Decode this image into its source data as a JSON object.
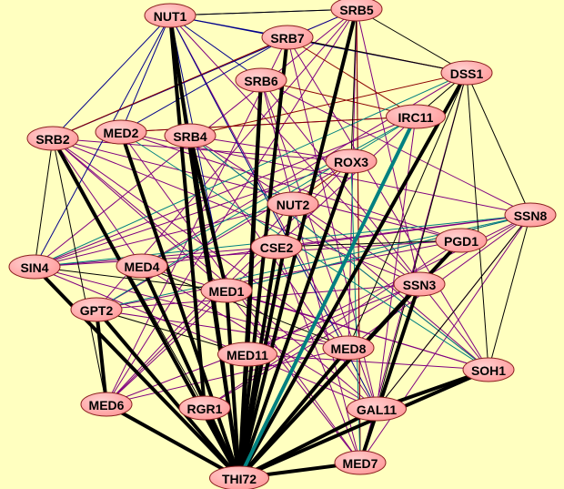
{
  "background": "#ffffc0",
  "node_fill": "#ff9a9a",
  "edge_colors": {
    "black": "#000000",
    "purple": "#800080",
    "blue": "#00008b",
    "red": "#8b0000",
    "teal": "#008080",
    "olive": "#6b8e23"
  },
  "nodes": [
    "NUT1",
    "SRB5",
    "SRB7",
    "DSS1",
    "SRB6",
    "IRC11",
    "SRB2",
    "MED2",
    "SRB4",
    "ROX3",
    "NUT2",
    "SSN8",
    "PGD1",
    "SIN4",
    "MED4",
    "CSE2",
    "MED1",
    "SSN3",
    "GPT2",
    "MED11",
    "MED8",
    "SOH1",
    "MED6",
    "RGR1",
    "GAL11",
    "MED7",
    "THI72"
  ],
  "edges_thick": [
    "THI72-NUT1",
    "THI72-SRB5",
    "THI72-SRB7",
    "THI72-SRB6",
    "THI72-DSS1",
    "THI72-SRB2",
    "THI72-MED2",
    "THI72-SRB4",
    "THI72-ROX3",
    "THI72-NUT2",
    "THI72-SIN4",
    "THI72-MED4",
    "THI72-CSE2",
    "THI72-MED1",
    "THI72-SSN3",
    "THI72-GPT2",
    "THI72-MED11",
    "THI72-MED8",
    "THI72-SOH1",
    "THI72-MED6",
    "THI72-RGR1",
    "THI72-GAL11",
    "THI72-MED7",
    "THI72-PGD1",
    "RGR1-NUT1",
    "MED11-SRB6",
    "GAL11-SOH1",
    "MED7-SSN3",
    "MED6-GPT2",
    "MED1-SRB4"
  ],
  "edges_teal_thick": [
    "THI72-IRC11"
  ],
  "edges_thin": {
    "purple": [
      "SRB2-MED4",
      "SRB2-MED1",
      "SRB2-GAL11",
      "SRB2-MED8",
      "SRB2-ROX3",
      "MED2-SSN8",
      "MED2-PGD1",
      "MED2-MED7",
      "SRB4-SSN3",
      "SRB4-GAL11",
      "SRB4-SOH1",
      "SRB6-MED7",
      "SRB6-GAL11",
      "SRB7-SOH1",
      "SRB7-MED6",
      "SRB5-MED6",
      "SRB5-GPT2",
      "SRB5-SIN4",
      "SRB5-MED7",
      "ROX3-MED6",
      "ROX3-GPT2",
      "ROX3-SIN4",
      "NUT2-SIN4",
      "NUT2-MED6",
      "NUT2-SOH1",
      "CSE2-SSN8",
      "CSE2-SIN4",
      "MED4-SSN8",
      "MED4-SOH1",
      "MED4-GAL11",
      "MED1-SSN8",
      "MED1-SOH1",
      "GPT2-SSN3",
      "GPT2-PGD1",
      "GPT2-MED8",
      "SIN4-PGD1",
      "SIN4-MED8",
      "SIN4-GAL11",
      "MED6-SSN3",
      "MED6-MED8",
      "RGR1-SSN8",
      "RGR1-PGD1",
      "MED11-SSN8",
      "MED11-SOH1",
      "MED8-SSN8",
      "GAL11-SSN8",
      "MED7-SSN8",
      "MED7-DSS1",
      "GAL11-IRC11",
      "MED8-SRB5",
      "SSN3-SRB2",
      "PGD1-SRB2",
      "SRB2-SRB5",
      "MED2-IRC11",
      "SRB4-ROX3",
      "IRC11-SIN4",
      "DSS1-MED4",
      "SRB6-SSN8",
      "NUT1-SSN3",
      "NUT1-MED8",
      "MED1-MED7",
      "CSE2-MED7",
      "SOH1-SRB6",
      "SSN3-SRB5",
      "SRB7-GAL11",
      "MED6-IRC11"
    ],
    "blue": [
      "NUT1-SRB5",
      "NUT1-SRB7",
      "NUT1-SRB6",
      "NUT1-DSS1",
      "NUT1-SRB2",
      "NUT1-MED2",
      "NUT1-SRB4",
      "NUT1-SIN4",
      "SRB5-SRB2",
      "SRB7-MED2",
      "NUT1-MED1",
      "NUT1-GAL11"
    ],
    "red": [
      "SRB7-IRC11",
      "SRB6-IRC11",
      "MED2-IRC11",
      "SRB2-SRB7",
      "SRB4-DSS1",
      "ROX3-NUT2",
      "SRB5-MED7",
      "SRB7-DSS1"
    ],
    "teal": [
      "SSN8-MED1",
      "SSN8-GPT2",
      "SSN8-SIN4",
      "IRC11-MED4",
      "IRC11-GPT2",
      "SOH1-SRB4",
      "SOH1-MED2",
      "DSS1-SIN4",
      "MED7-ROX3"
    ],
    "black": [
      "DSS1-SRB5",
      "DSS1-SRB7",
      "DSS1-SSN8",
      "DSS1-SOH1",
      "DSS1-IRC11",
      "SSN8-SOH1",
      "SRB5-ROX3",
      "SRB5-NUT1",
      "SRB2-MED6",
      "SRB2-RGR1",
      "SIN4-MED1",
      "PGD1-CSE2",
      "MED4-MED8",
      "GPT2-MED11",
      "SRB2-SIN4",
      "DSS1-GAL11",
      "DSS1-MED8",
      "SSN8-GAL11"
    ]
  }
}
